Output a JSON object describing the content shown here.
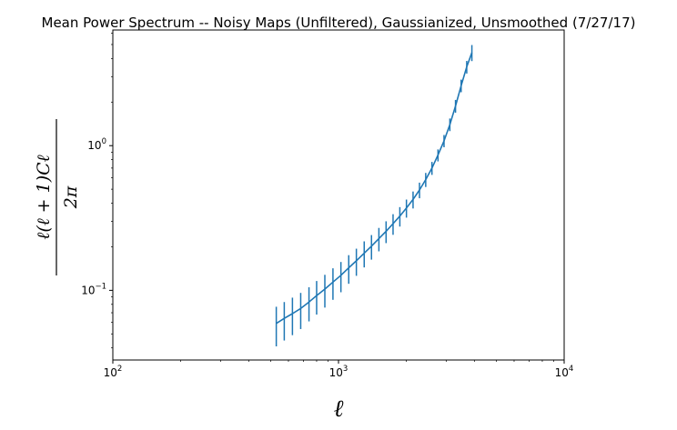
{
  "chart_data": {
    "type": "line",
    "title": "Mean Power Spectrum -- Noisy Maps (Unfiltered), Gaussianized, Unsmoothed (7/27/17)",
    "xlabel": "ℓ",
    "ylabel": {
      "numerator": "ℓ(ℓ + 1)Cℓ",
      "denominator": "2π"
    },
    "xscale": "log",
    "yscale": "log",
    "xlim": [
      100,
      10000
    ],
    "ylim": [
      0.033,
      6.3
    ],
    "x_ticks": [
      {
        "value": 100,
        "base": "10",
        "exp": "2"
      },
      {
        "value": 1000,
        "base": "10",
        "exp": "3"
      },
      {
        "value": 10000,
        "base": "10",
        "exp": "4"
      }
    ],
    "y_ticks": [
      {
        "value": 0.1,
        "base": "10",
        "exp": "−1"
      },
      {
        "value": 1,
        "base": "10",
        "exp": "0"
      }
    ],
    "grid": false,
    "legend": "none",
    "color": "#1f77b4",
    "series": [
      {
        "x": [
          530,
          575,
          625,
          680,
          740,
          800,
          870,
          945,
          1025,
          1110,
          1200,
          1300,
          1400,
          1510,
          1625,
          1745,
          1870,
          2000,
          2140,
          2285,
          2435,
          2595,
          2760,
          2935,
          3115,
          3300,
          3495,
          3700,
          3900
        ],
        "y": [
          0.059,
          0.064,
          0.069,
          0.075,
          0.083,
          0.092,
          0.102,
          0.114,
          0.127,
          0.143,
          0.16,
          0.181,
          0.202,
          0.228,
          0.256,
          0.289,
          0.326,
          0.371,
          0.425,
          0.494,
          0.583,
          0.7,
          0.86,
          1.08,
          1.4,
          1.88,
          2.6,
          3.5,
          4.4
        ],
        "yerr": [
          0.018,
          0.019,
          0.02,
          0.021,
          0.022,
          0.024,
          0.026,
          0.028,
          0.03,
          0.032,
          0.034,
          0.037,
          0.039,
          0.042,
          0.044,
          0.047,
          0.05,
          0.053,
          0.057,
          0.061,
          0.065,
          0.072,
          0.082,
          0.105,
          0.14,
          0.19,
          0.26,
          0.35,
          0.56
        ]
      }
    ]
  }
}
